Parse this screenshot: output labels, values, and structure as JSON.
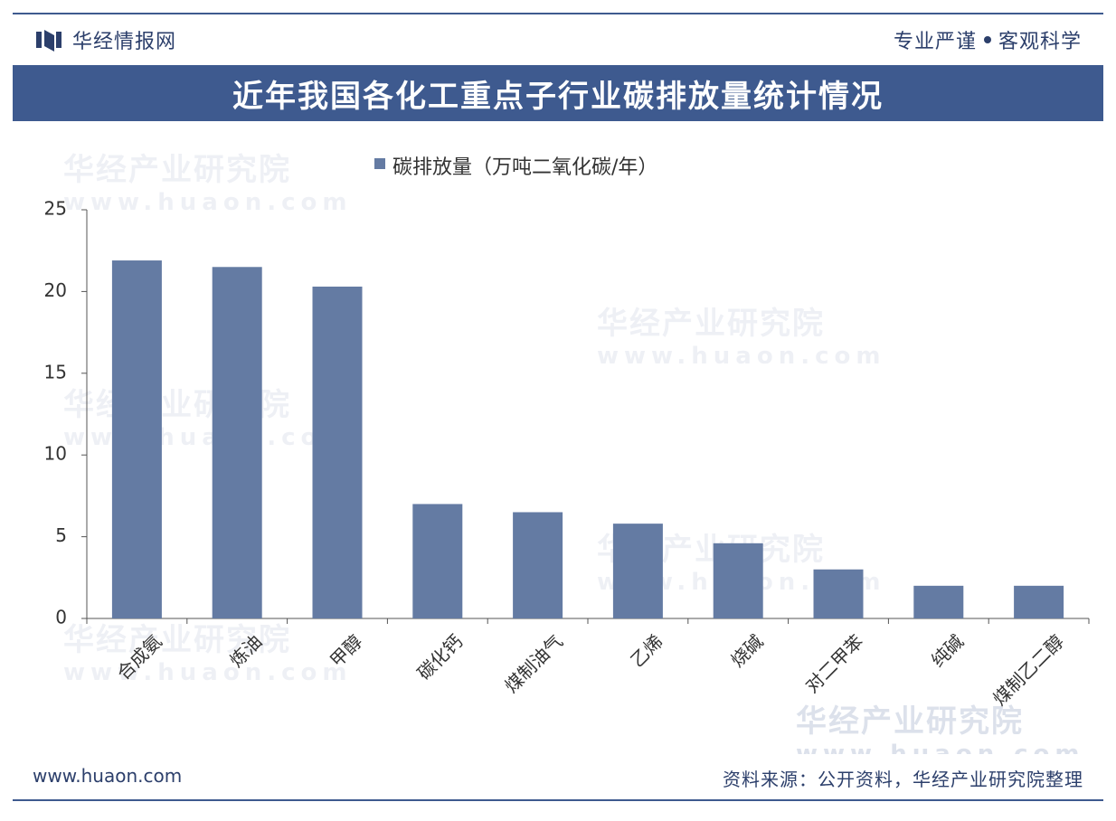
{
  "brand": {
    "name": "华经情报网",
    "slogan_left": "专业严谨",
    "slogan_right": "客观科学"
  },
  "title": "近年我国各化工重点子行业碳排放量统计情况",
  "watermark": {
    "text": "华经产业研究院",
    "url": "www.huaon.com"
  },
  "footer": {
    "url": "www.huaon.com",
    "source": "资料来源：公开资料，华经产业研究院整理"
  },
  "colors": {
    "bar": "#647ba3",
    "accent": "#3e5a8f",
    "axis": "#555555"
  },
  "chart_data": {
    "type": "bar",
    "legend": "碳排放量（万吨二氧化碳/年）",
    "legend_position": "top-center",
    "categories": [
      "合成氨",
      "炼油",
      "甲醇",
      "碳化钙",
      "煤制油气",
      "乙烯",
      "烧碱",
      "对二甲苯",
      "纯碱",
      "煤制乙二醇"
    ],
    "series": [
      {
        "name": "碳排放量（万吨二氧化碳/年）",
        "values": [
          21.9,
          21.5,
          20.3,
          7.0,
          6.5,
          5.8,
          4.6,
          3.0,
          2.0,
          2.0
        ]
      }
    ],
    "yticks": [
      0,
      5,
      10,
      15,
      20,
      25
    ],
    "ylim": [
      0,
      25
    ],
    "grid": false
  }
}
